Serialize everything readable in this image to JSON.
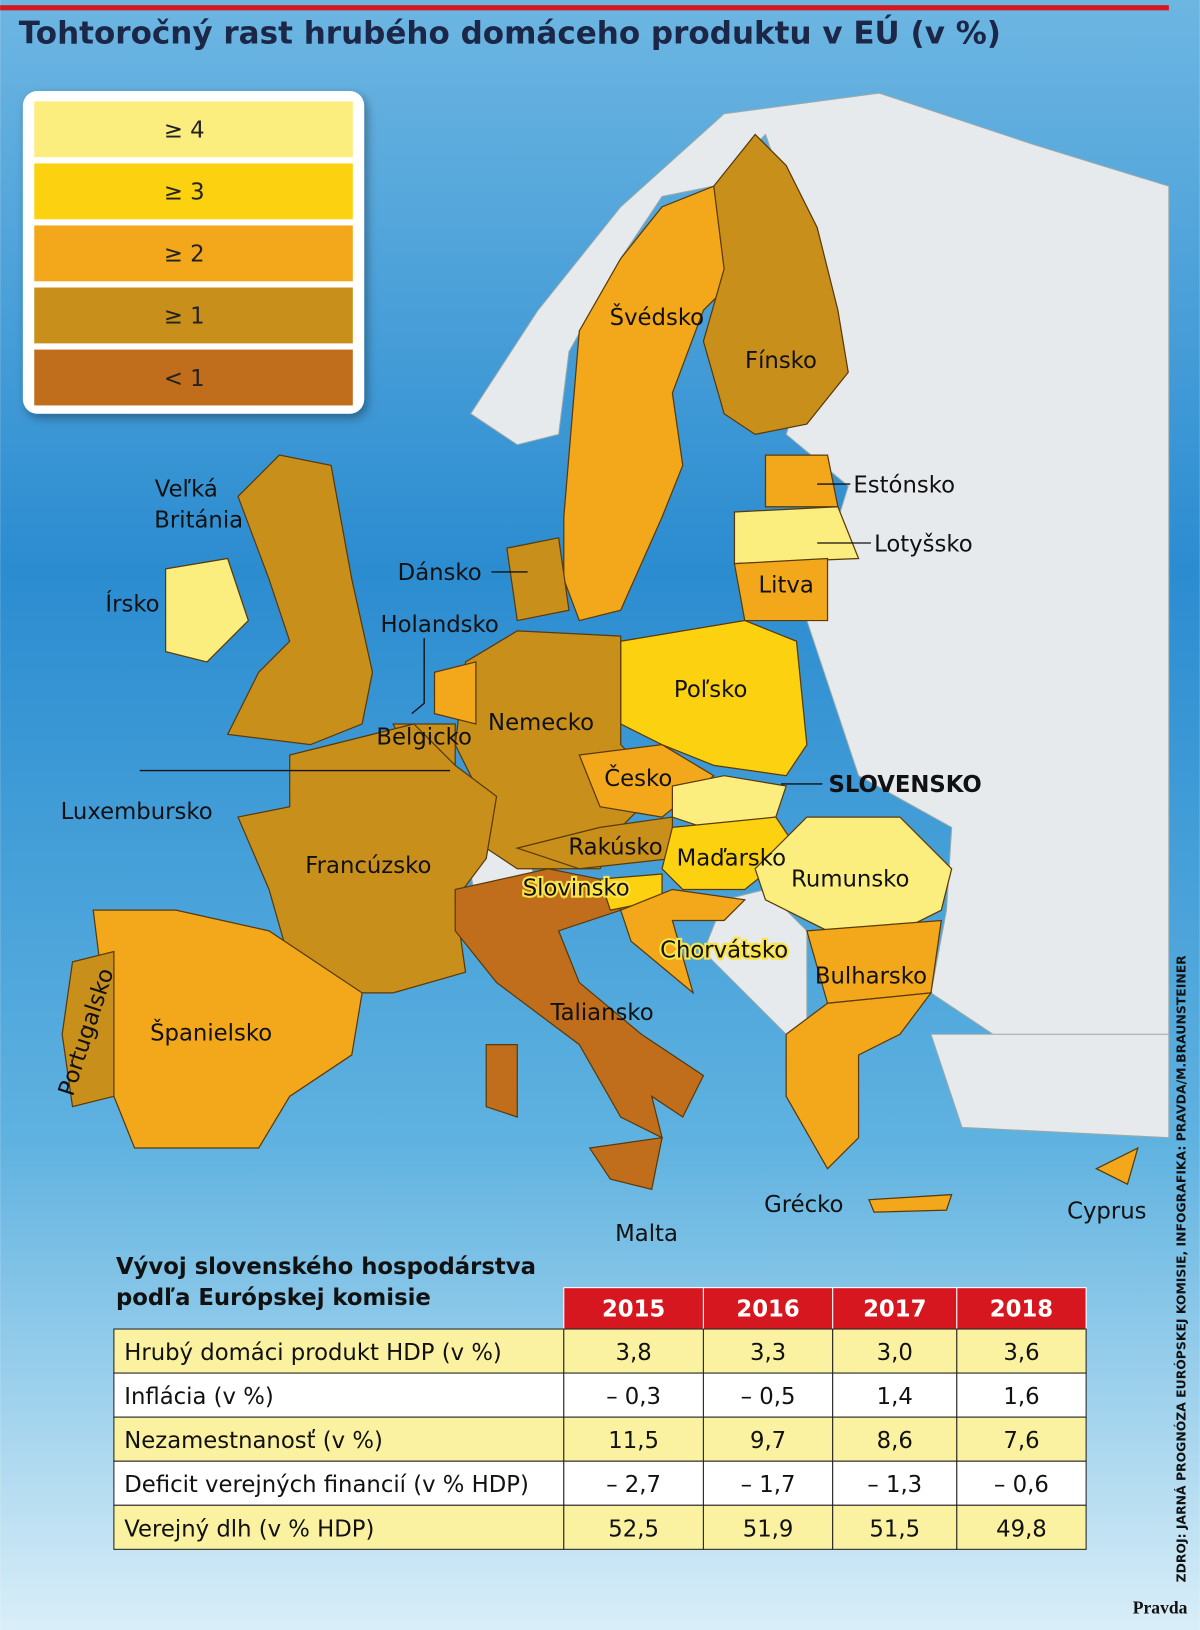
{
  "title": "Tohtoročný rast hrubého domáceho produktu v EÚ (v %)",
  "legend": [
    {
      "label": "≥ 4",
      "color": "#fbee7f"
    },
    {
      "label": "≥ 3",
      "color": "#fcd10f"
    },
    {
      "label": "≥ 2",
      "color": "#f2a81a"
    },
    {
      "label": "≥ 1",
      "color": "#c98f1b"
    },
    {
      "label": "< 1",
      "color": "#c06e1c"
    }
  ],
  "map_labels": [
    "Švédsko",
    "Fínsko",
    "Estónsko",
    "Lotyšsko",
    "Litva",
    "Veľká",
    "Británia",
    "Dánsko",
    "Írsko",
    "Holandsko",
    "Poľsko",
    "Nemecko",
    "Belgicko",
    "SLOVENSKO",
    "Česko",
    "Luxembursko",
    "Francúzsko",
    "Rakúsko",
    "Maďarsko",
    "Rumunsko",
    "Slovinsko",
    "Chorvátsko",
    "Bulharsko",
    "Taliansko",
    "Španielsko",
    "Portugalsko",
    "Grécko",
    "Cyprus",
    "Malta"
  ],
  "table": {
    "title_lines": [
      "Vývoj slovenského hospodárstva",
      "podľa Európskej komisie"
    ],
    "columns": [
      "2015",
      "2016",
      "2017",
      "2018"
    ],
    "rows": [
      [
        "Hrubý domáci produkt HDP (v %)",
        "3,8",
        "3,3",
        "3,0",
        "3,6"
      ],
      [
        "Inflácia (v %)",
        "– 0,3",
        "– 0,5",
        "1,4",
        "1,6"
      ],
      [
        "Nezamestnanosť (v %)",
        "11,5",
        "9,7",
        "8,6",
        "7,6"
      ],
      [
        "Deficit verejných financií (v % HDP)",
        "– 2,7",
        "– 1,7",
        "– 1,3",
        "– 0,6"
      ],
      [
        "Verejný dlh (v % HDP)",
        "52,5",
        "51,9",
        "51,5",
        "49,8"
      ]
    ]
  },
  "source": "ZDROJ: JARNÁ PROGNÓZA EURÓPSKEJ KOMISIE, INFOGRAFIKA: PRAVDA/M.BRAUNSTEINER",
  "logo": "Pravda"
}
